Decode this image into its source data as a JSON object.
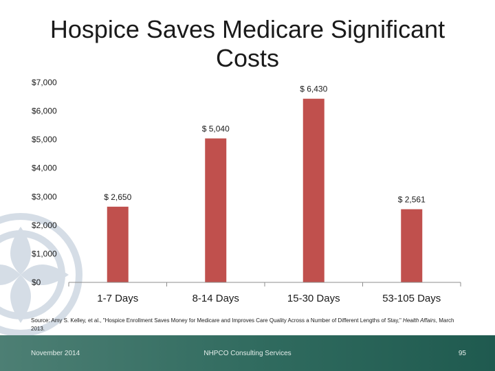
{
  "slide": {
    "title": "Hospice Saves Medicare Significant Costs",
    "source_prefix": "Source: Amy S. Kelley, et al., \"Hospice Enrollment Saves Money for Medicare and Improves Care Quality Across a Number of Different Lengths of Stay,\"",
    "source_journal": "Health Affairs",
    "source_suffix": ", March 2013.",
    "footer_date": "November 2014",
    "footer_center": "NHPCO Consulting Services",
    "page_number": "95"
  },
  "colors": {
    "bar": "#c0504d",
    "axis": "#8c8c8c"
  },
  "chart_data": {
    "type": "bar",
    "title": "Hospice Saves Medicare Significant Costs",
    "categories": [
      "1-7 Days",
      "8-14 Days",
      "15-30 Days",
      "53-105 Days"
    ],
    "values": [
      2650,
      5040,
      6430,
      2561
    ],
    "value_labels": [
      "$ 2,650",
      "$ 5,040",
      "$ 6,430",
      "$ 2,561"
    ],
    "yticks": [
      0,
      1000,
      2000,
      3000,
      4000,
      5000,
      6000,
      7000
    ],
    "ytick_labels": [
      "$0",
      "$1,000",
      "$2,000",
      "$3,000",
      "$4,000",
      "$5,000",
      "$6,000",
      "$7,000"
    ],
    "ylim": [
      0,
      7000
    ],
    "xlabel": "",
    "ylabel": "",
    "grid": false,
    "legend": "none"
  }
}
